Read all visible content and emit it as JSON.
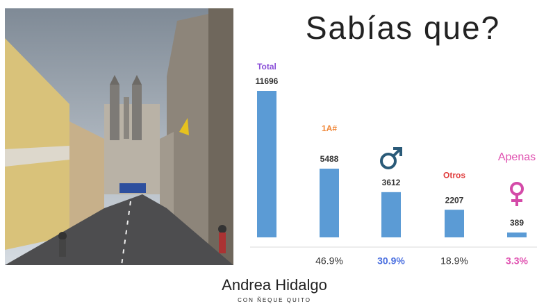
{
  "chart_data": {
    "type": "bar",
    "title": "Sabías que?",
    "categories": [
      "Total",
      "1A#",
      null,
      "Otros",
      "Apenas"
    ],
    "category_colors": [
      "#8a4fd8",
      "#f0883a",
      null,
      "#e03c3c",
      "#e050b0"
    ],
    "values": [
      11696,
      5488,
      3612,
      2207,
      389
    ],
    "color": "#5b9bd5",
    "shares": [
      null,
      46.9,
      30.9,
      18.9,
      3.3
    ],
    "share_labels": [
      null,
      "46.9%",
      "30.9%",
      "18.9%",
      "3.3%"
    ],
    "share_colors": [
      null,
      "#333333",
      "#4a6fe0",
      "#333333",
      "#e050b0"
    ],
    "ylim": [
      0,
      11696
    ]
  },
  "footer": {
    "name": "Andrea Hidalgo",
    "tagline": "CON ÑEQUE QUITO"
  }
}
